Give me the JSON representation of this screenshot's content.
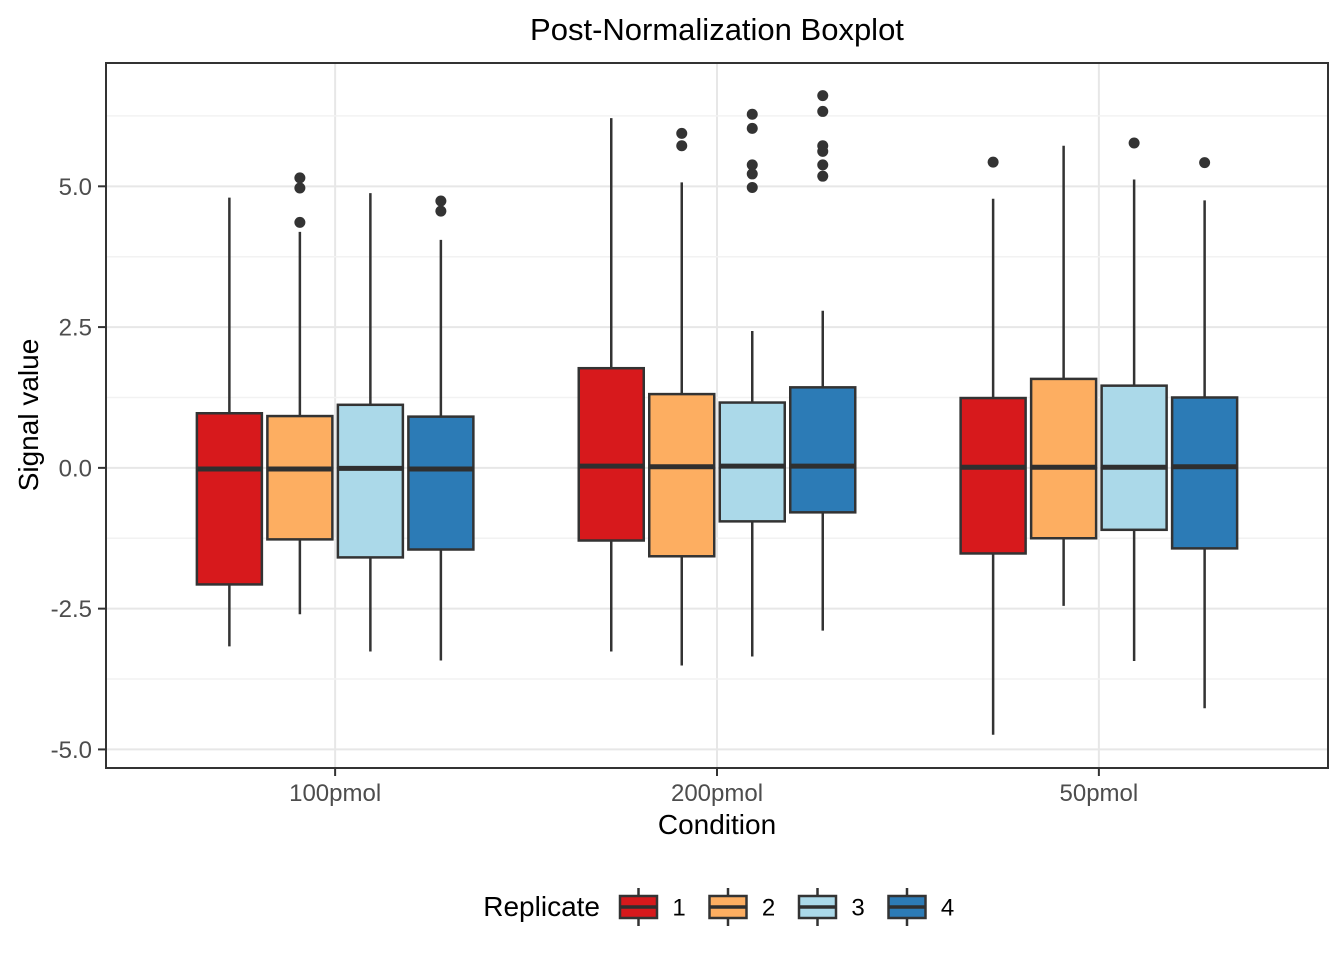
{
  "title": "Post-Normalization Boxplot",
  "axes": {
    "x": {
      "label": "Condition",
      "categories": [
        "100pmol",
        "200pmol",
        "50pmol"
      ]
    },
    "y": {
      "label": "Signal value",
      "tick_labels": [
        "5.0",
        "2.5",
        "0.0",
        "-2.5",
        "-5.0"
      ],
      "tick_values": [
        5.0,
        2.5,
        0.0,
        -2.5,
        -5.0
      ],
      "minor_tick_values": [
        6.25,
        3.75,
        1.25,
        -1.25,
        -3.75
      ]
    }
  },
  "legend": {
    "title": "Replicate",
    "entries": [
      {
        "label": "1",
        "color": "#D7191C"
      },
      {
        "label": "2",
        "color": "#FDAE61"
      },
      {
        "label": "3",
        "color": "#ABD9E9"
      },
      {
        "label": "4",
        "color": "#2C7BB6"
      }
    ]
  },
  "style": {
    "box_border": "#333333",
    "median_color": "#2f2f2f",
    "outlier_color": "#333333",
    "grid_major": "#e7e7e7",
    "grid_minor": "#f2f2f2",
    "panel_border": "#333333",
    "tick_color": "#333333",
    "tick_label_color": "#4d4d4d",
    "background": "#ffffff"
  },
  "chart_data": {
    "type": "boxplot",
    "title": "Post-Normalization Boxplot",
    "xlabel": "Condition",
    "ylabel": "Signal value",
    "categories": [
      "100pmol",
      "200pmol",
      "50pmol"
    ],
    "ylim": [
      -5.33,
      7.19
    ],
    "y_major_gridlines": [
      -5.0,
      -2.5,
      0.0,
      2.5,
      5.0
    ],
    "y_minor_gridlines": [
      -3.75,
      -1.25,
      1.25,
      3.75,
      6.25
    ],
    "grid": true,
    "legend_title": "Replicate",
    "legend_position": "bottom",
    "series": [
      {
        "name": "1",
        "color": "#D7191C",
        "boxes": [
          {
            "category": "100pmol",
            "whisker_low": -3.17,
            "q1": -2.07,
            "median": -0.02,
            "q3": 0.97,
            "whisker_high": 4.8,
            "outliers": []
          },
          {
            "category": "200pmol",
            "whisker_low": -3.26,
            "q1": -1.29,
            "median": 0.03,
            "q3": 1.77,
            "whisker_high": 6.21,
            "outliers": []
          },
          {
            "category": "50pmol",
            "whisker_low": -4.74,
            "q1": -1.52,
            "median": 0.01,
            "q3": 1.24,
            "whisker_high": 4.78,
            "outliers": [
              5.43
            ]
          }
        ]
      },
      {
        "name": "2",
        "color": "#FDAE61",
        "boxes": [
          {
            "category": "100pmol",
            "whisker_low": -2.6,
            "q1": -1.27,
            "median": -0.02,
            "q3": 0.92,
            "whisker_high": 4.19,
            "outliers": [
              4.36,
              4.97,
              5.15
            ]
          },
          {
            "category": "200pmol",
            "whisker_low": -3.51,
            "q1": -1.57,
            "median": 0.02,
            "q3": 1.31,
            "whisker_high": 5.07,
            "outliers": [
              5.72,
              5.94
            ]
          },
          {
            "category": "50pmol",
            "whisker_low": -2.45,
            "q1": -1.25,
            "median": 0.01,
            "q3": 1.58,
            "whisker_high": 5.72,
            "outliers": []
          }
        ]
      },
      {
        "name": "3",
        "color": "#ABD9E9",
        "boxes": [
          {
            "category": "100pmol",
            "whisker_low": -3.26,
            "q1": -1.59,
            "median": -0.01,
            "q3": 1.12,
            "whisker_high": 4.88,
            "outliers": []
          },
          {
            "category": "200pmol",
            "whisker_low": -3.35,
            "q1": -0.95,
            "median": 0.03,
            "q3": 1.16,
            "whisker_high": 2.43,
            "outliers": [
              4.98,
              5.22,
              5.38,
              6.03,
              6.28
            ]
          },
          {
            "category": "50pmol",
            "whisker_low": -3.43,
            "q1": -1.1,
            "median": 0.01,
            "q3": 1.46,
            "whisker_high": 5.12,
            "outliers": [
              5.77
            ]
          }
        ]
      },
      {
        "name": "4",
        "color": "#2C7BB6",
        "boxes": [
          {
            "category": "100pmol",
            "whisker_low": -3.42,
            "q1": -1.45,
            "median": -0.02,
            "q3": 0.91,
            "whisker_high": 4.05,
            "outliers": [
              4.56,
              4.74
            ]
          },
          {
            "category": "200pmol",
            "whisker_low": -2.89,
            "q1": -0.79,
            "median": 0.03,
            "q3": 1.43,
            "whisker_high": 2.79,
            "outliers": [
              5.18,
              5.38,
              5.62,
              5.72,
              6.33,
              6.61
            ]
          },
          {
            "category": "50pmol",
            "whisker_low": -4.27,
            "q1": -1.43,
            "median": 0.02,
            "q3": 1.25,
            "whisker_high": 4.75,
            "outliers": [
              5.42
            ]
          }
        ]
      }
    ]
  }
}
